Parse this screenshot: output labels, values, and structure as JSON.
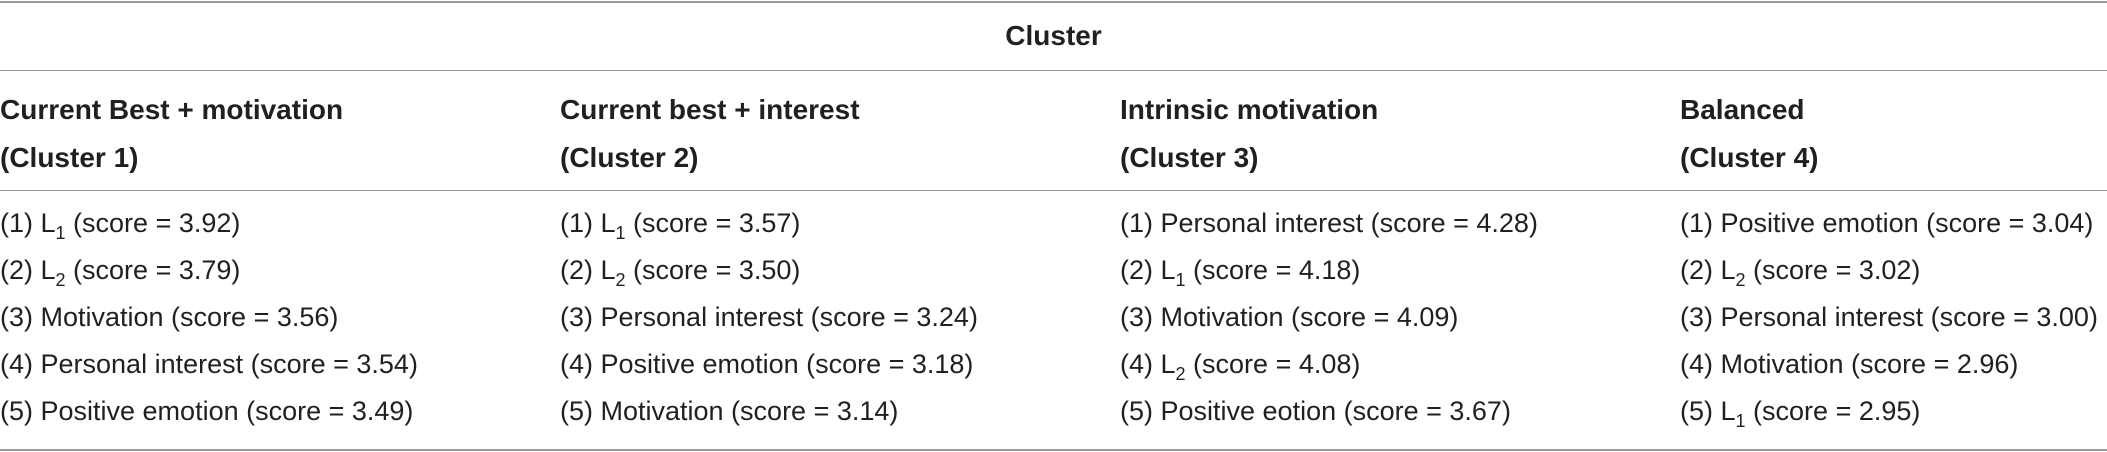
{
  "table": {
    "caption": "Cluster",
    "columns": [
      {
        "title": "Current Best + motivation",
        "subtitle": "(Cluster 1)",
        "rows": [
          {
            "rank": "(1) ",
            "base": "L",
            "sub": "1",
            "text": " (score = 3.92)"
          },
          {
            "rank": "(2) ",
            "base": "L",
            "sub": "2",
            "text": " (score = 3.79)"
          },
          {
            "rank": "(3) ",
            "base": "",
            "sub": "",
            "text": "Motivation (score = 3.56)"
          },
          {
            "rank": "(4) ",
            "base": "",
            "sub": "",
            "text": "Personal interest (score = 3.54)"
          },
          {
            "rank": "(5) ",
            "base": "",
            "sub": "",
            "text": "Positive emotion (score = 3.49)"
          }
        ]
      },
      {
        "title": "Current best + interest",
        "subtitle": "(Cluster 2)",
        "rows": [
          {
            "rank": "(1) ",
            "base": "L",
            "sub": "1",
            "text": " (score = 3.57)"
          },
          {
            "rank": "(2) ",
            "base": "L",
            "sub": "2",
            "text": " (score = 3.50)"
          },
          {
            "rank": "(3) ",
            "base": "",
            "sub": "",
            "text": "Personal interest (score = 3.24)"
          },
          {
            "rank": "(4) ",
            "base": "",
            "sub": "",
            "text": "Positive emotion (score = 3.18)"
          },
          {
            "rank": "(5) ",
            "base": "",
            "sub": "",
            "text": "Motivation (score = 3.14)"
          }
        ]
      },
      {
        "title": "Intrinsic motivation",
        "subtitle": "(Cluster 3)",
        "rows": [
          {
            "rank": "(1) ",
            "base": "",
            "sub": "",
            "text": "Personal interest (score = 4.28)"
          },
          {
            "rank": "(2) ",
            "base": "L",
            "sub": "1",
            "text": " (score = 4.18)"
          },
          {
            "rank": "(3) ",
            "base": "",
            "sub": "",
            "text": "Motivation (score = 4.09)"
          },
          {
            "rank": "(4) ",
            "base": "L",
            "sub": "2",
            "text": " (score = 4.08)"
          },
          {
            "rank": "(5) ",
            "base": "",
            "sub": "",
            "text": "Positive eotion (score = 3.67)"
          }
        ]
      },
      {
        "title": "Balanced",
        "subtitle": "(Cluster 4)",
        "rows": [
          {
            "rank": "(1) ",
            "base": "",
            "sub": "",
            "text": "Positive emotion (score = 3.04)"
          },
          {
            "rank": "(2) ",
            "base": "L",
            "sub": "2",
            "text": " (score = 3.02)"
          },
          {
            "rank": "(3) ",
            "base": "",
            "sub": "",
            "text": "Personal interest (score = 3.00)"
          },
          {
            "rank": "(4) ",
            "base": "",
            "sub": "",
            "text": "Motivation (score = 2.96)"
          },
          {
            "rank": "(5) ",
            "base": "L",
            "sub": "1",
            "text": " (score = 2.95)"
          }
        ]
      }
    ]
  }
}
